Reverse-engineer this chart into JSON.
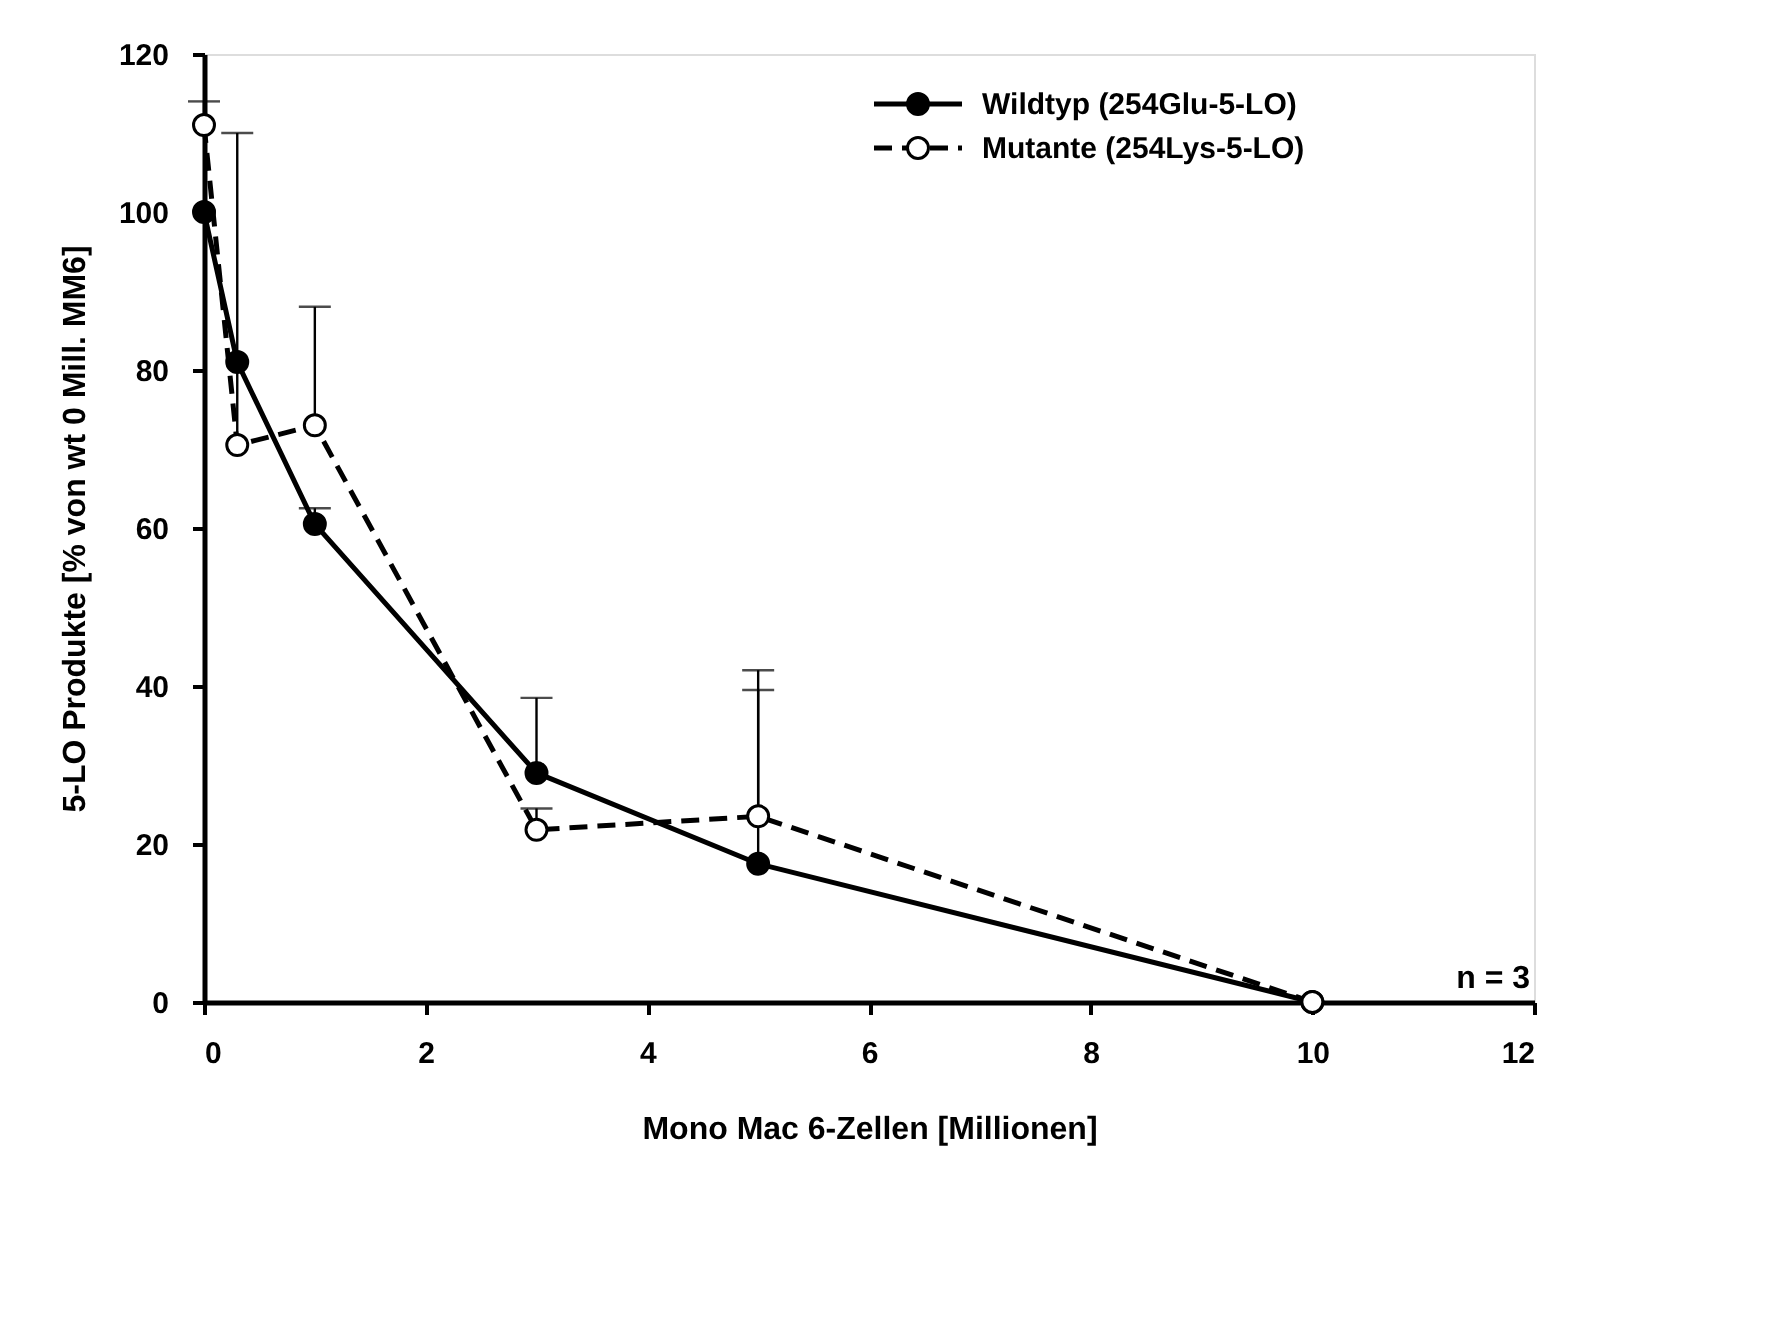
{
  "chart_data": {
    "type": "line",
    "xlabel": "Mono Mac 6-Zellen [Millionen]",
    "ylabel": "5-LO Produkte [% von wt 0 Mill. MM6]",
    "xlim": [
      0,
      12
    ],
    "xticks": [
      0,
      2,
      4,
      6,
      8,
      10,
      12
    ],
    "ylim": [
      0,
      120
    ],
    "yticks": [
      0,
      20,
      40,
      60,
      80,
      100,
      120
    ],
    "grid": false,
    "legend": "top right",
    "marker": "circle",
    "annotations": [
      "n = 3"
    ],
    "series": [
      {
        "name": "Wildtyp (254Glu-5-LO)",
        "color": "#000000",
        "line_style": "solid",
        "x": [
          0,
          0.3,
          1,
          3,
          5,
          10
        ],
        "values": [
          100,
          81,
          60.5,
          29,
          17.5,
          0
        ],
        "errors": [
          null,
          null,
          [
            60.5,
            62.5
          ],
          [
            29,
            38.5
          ],
          [
            17.5,
            39.5
          ],
          null
        ]
      },
      {
        "name": "Mutante (254Lys-5-LO)",
        "color": "#000000",
        "line_style": "dashed",
        "x": [
          0,
          0.3,
          1,
          3,
          5,
          10
        ],
        "values": [
          111,
          70.5,
          73,
          21.8,
          23.5,
          0
        ],
        "errors": [
          [
            111,
            114
          ],
          [
            70.5,
            110
          ],
          [
            73,
            88
          ],
          [
            21.8,
            24.5
          ],
          [
            23.5,
            42
          ],
          null
        ]
      }
    ]
  }
}
